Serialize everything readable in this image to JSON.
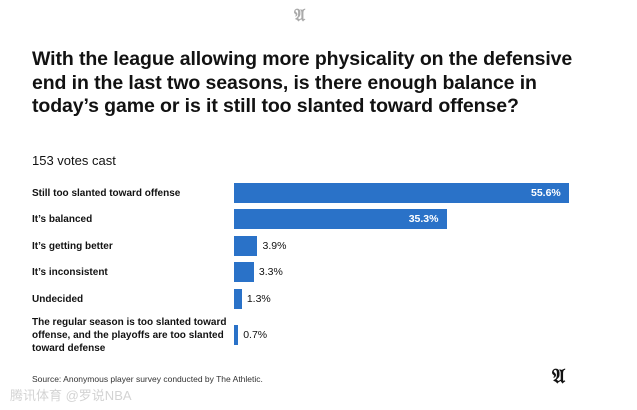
{
  "logo": "A",
  "title": "With the league allowing more physicality on the defensive end in the last two seasons, is there enough balance in today’s game or is it still too slanted toward offense?",
  "votes": "153 votes cast",
  "source": "Source: Anonymous player survey conducted by The Athletic.",
  "watermark": "腾讯体育 @罗说NBA",
  "chart_data": {
    "type": "bar",
    "orientation": "horizontal",
    "title": "With the league allowing more physicality on the defensive end in the last two seasons, is there enough balance in today’s game or is it still too slanted toward offense?",
    "categories": [
      "Still too slanted toward offense",
      "It’s balanced",
      "It’s getting better",
      "It’s inconsistent",
      "Undecided",
      "The regular season is too slanted toward offense, and the playoffs are too slanted toward defense"
    ],
    "values": [
      55.6,
      35.3,
      3.9,
      3.3,
      1.3,
      0.7
    ],
    "labels": [
      "55.6%",
      "35.3%",
      "3.9%",
      "3.3%",
      "1.3%",
      "0.7%"
    ],
    "unit": "%",
    "color": "#2a72c8"
  }
}
